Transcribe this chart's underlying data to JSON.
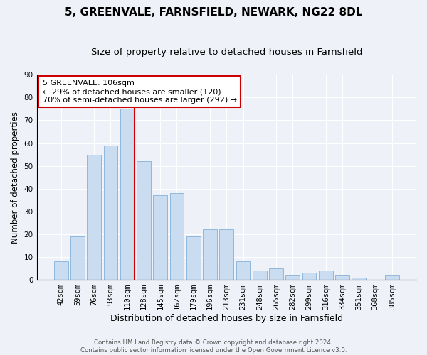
{
  "title": "5, GREENVALE, FARNSFIELD, NEWARK, NG22 8DL",
  "subtitle": "Size of property relative to detached houses in Farnsfield",
  "xlabel": "Distribution of detached houses by size in Farnsfield",
  "ylabel": "Number of detached properties",
  "categories": [
    "42sqm",
    "59sqm",
    "76sqm",
    "93sqm",
    "110sqm",
    "128sqm",
    "145sqm",
    "162sqm",
    "179sqm",
    "196sqm",
    "213sqm",
    "231sqm",
    "248sqm",
    "265sqm",
    "282sqm",
    "299sqm",
    "316sqm",
    "334sqm",
    "351sqm",
    "368sqm",
    "385sqm"
  ],
  "values": [
    8,
    19,
    55,
    59,
    75,
    52,
    37,
    38,
    19,
    22,
    22,
    8,
    4,
    5,
    2,
    3,
    4,
    2,
    1,
    0,
    2
  ],
  "bar_color": "#c9dcf0",
  "bar_edge_color": "#8fb8de",
  "vline_color": "#cc0000",
  "vline_x": 4,
  "annotation_box_text": "5 GREENVALE: 106sqm\n← 29% of detached houses are smaller (120)\n70% of semi-detached houses are larger (292) →",
  "annotation_box_color": "#cc0000",
  "ylim": [
    0,
    90
  ],
  "yticks": [
    0,
    10,
    20,
    30,
    40,
    50,
    60,
    70,
    80,
    90
  ],
  "title_fontsize": 11,
  "subtitle_fontsize": 9.5,
  "xlabel_fontsize": 9,
  "ylabel_fontsize": 8.5,
  "tick_fontsize": 7.5,
  "annot_fontsize": 8,
  "footer_line1": "Contains HM Land Registry data © Crown copyright and database right 2024.",
  "footer_line2": "Contains public sector information licensed under the Open Government Licence v3.0.",
  "background_color": "#eef2f8",
  "plot_bg_color": "#eef2f8",
  "grid_color": "#ffffff"
}
